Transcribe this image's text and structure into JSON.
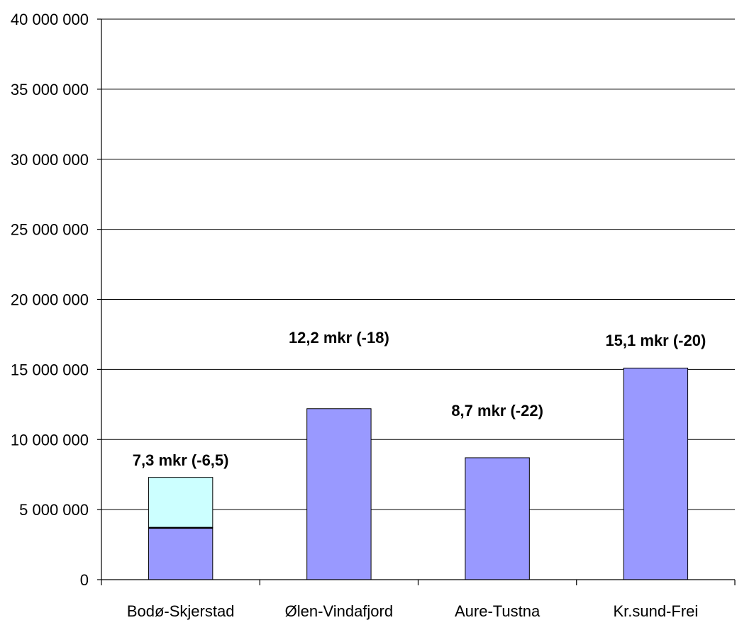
{
  "chart_data": {
    "type": "bar",
    "stacked": true,
    "categories": [
      "Bodø-Skjerstad",
      "Ølen-Vindafjord",
      "Aure-Tustna",
      "Kr.sund-Frei"
    ],
    "series": [
      {
        "values": [
          3700000,
          12200000,
          8700000,
          15100000
        ],
        "color": "#9999ff"
      },
      {
        "values": [
          3600000,
          0,
          0,
          0
        ],
        "color": "#ccffff"
      }
    ],
    "data_labels": [
      "7,3 mkr (-6,5)",
      "12,2 mkr (-18)",
      "8,7 mkr (-22)",
      "15,1 mkr (-20)"
    ],
    "ylim": [
      0,
      40000000
    ],
    "yticks": [
      0,
      5000000,
      10000000,
      15000000,
      20000000,
      25000000,
      30000000,
      35000000,
      40000000
    ],
    "ytick_labels": [
      "0",
      "5 000 000",
      "10 000 000",
      "15 000 000",
      "20 000 000",
      "25 000 000",
      "30 000 000",
      "35 000 000",
      "40 000 000"
    ],
    "grid": true,
    "legend": "none",
    "title": "",
    "xlabel": "",
    "ylabel": ""
  }
}
